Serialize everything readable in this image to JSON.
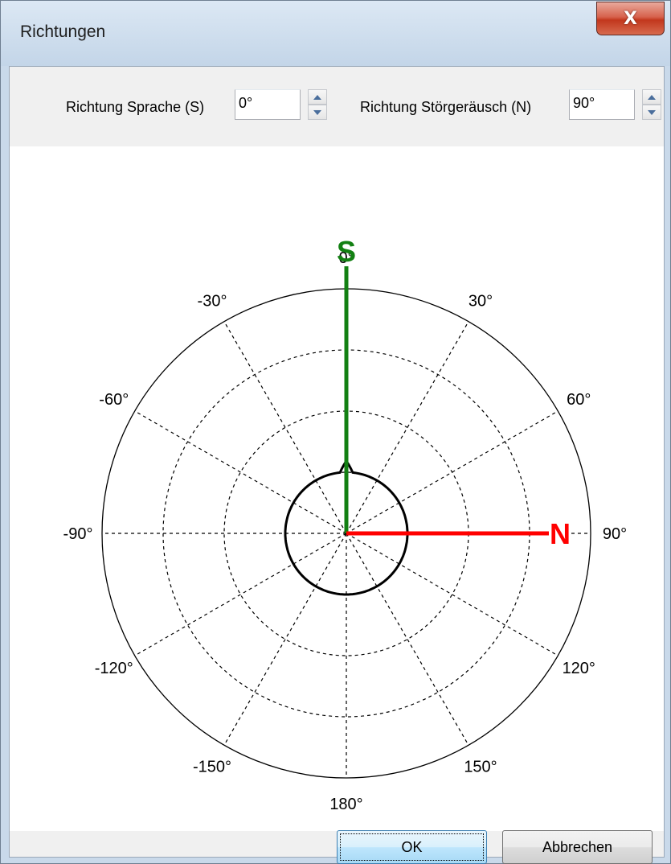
{
  "window": {
    "title": "Richtungen",
    "close_glyph": "X"
  },
  "speech": {
    "label": "Richtung Sprache (S)",
    "value": "0°",
    "letter": "S",
    "angle": 0,
    "color": "#138013"
  },
  "noise": {
    "label": "Richtung Störgeräusch (N)",
    "value": "90°",
    "letter": "N",
    "angle": 90,
    "color": "#ff0000"
  },
  "polar": {
    "angle_labels": [
      {
        "deg": 0,
        "text": "0°"
      },
      {
        "deg": 30,
        "text": "30°"
      },
      {
        "deg": 60,
        "text": "60°"
      },
      {
        "deg": 90,
        "text": "90°"
      },
      {
        "deg": 120,
        "text": "120°"
      },
      {
        "deg": 150,
        "text": "150°"
      },
      {
        "deg": 180,
        "text": "180°"
      },
      {
        "deg": -150,
        "text": "-150°"
      },
      {
        "deg": -120,
        "text": "-120°"
      },
      {
        "deg": -90,
        "text": "-90°"
      },
      {
        "deg": -60,
        "text": "-60°"
      },
      {
        "deg": -30,
        "text": "-30°"
      }
    ],
    "ring_count": 4,
    "spoke_step_deg": 30,
    "pattern_radius_fraction": 0.25,
    "pattern_shape": "circle-with-tip-at-0"
  },
  "buttons": {
    "ok": "OK",
    "cancel": "Abbrechen"
  }
}
